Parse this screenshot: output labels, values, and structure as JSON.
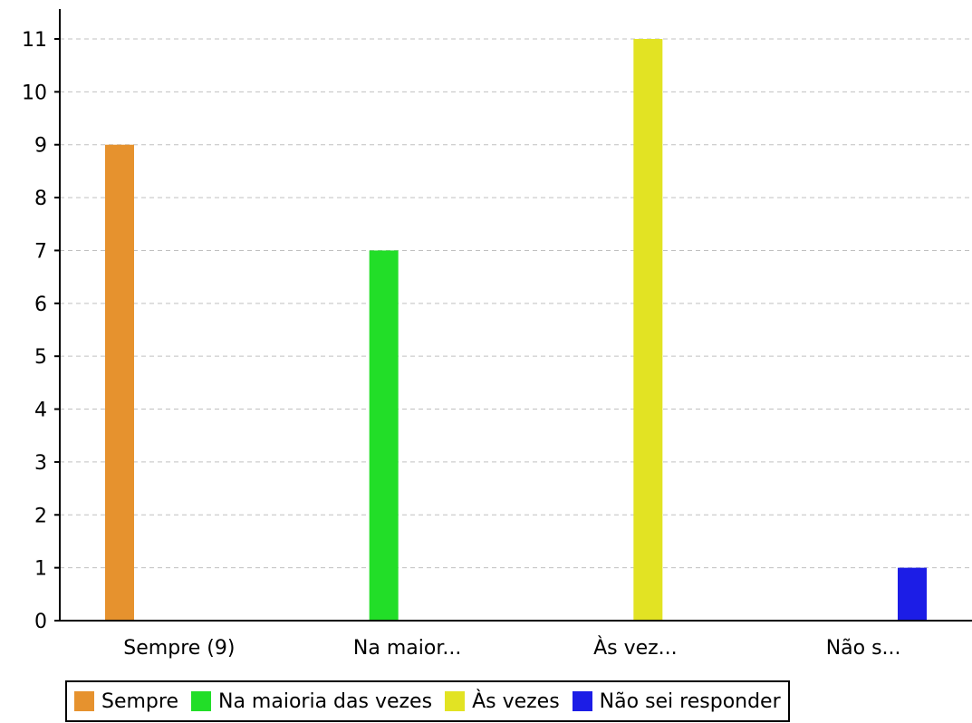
{
  "chart_data": {
    "type": "bar",
    "categories": [
      "Sempre (9)",
      "Na maior...",
      "Às vez...",
      "Não s..."
    ],
    "series": [
      {
        "name": "Sempre",
        "color": "#e6922e",
        "values": [
          9,
          null,
          null,
          null
        ]
      },
      {
        "name": "Na maioria das vezes",
        "color": "#22de28",
        "values": [
          null,
          7,
          null,
          null
        ]
      },
      {
        "name": "Às vezes",
        "color": "#e2e323",
        "values": [
          null,
          null,
          11,
          null
        ]
      },
      {
        "name": "Não sei responder",
        "color": "#1c1de6",
        "values": [
          null,
          null,
          null,
          1
        ]
      }
    ],
    "yticks": [
      "0",
      "1",
      "2",
      "3",
      "4",
      "5",
      "6",
      "7",
      "8",
      "9",
      "10",
      "11"
    ],
    "ylim": [
      0,
      11
    ],
    "grid": true,
    "legend_position": "bottom"
  }
}
